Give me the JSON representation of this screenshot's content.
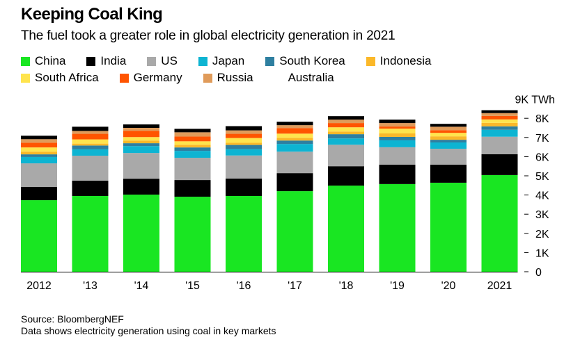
{
  "header": {
    "title": "Keeping Coal King",
    "subtitle": "The fuel took a greater role in global electricity generation in 2021"
  },
  "footer": {
    "source": "Source: BloombergNEF",
    "note": "Data shows electricity generation using coal in key markets"
  },
  "chart_data": {
    "type": "bar",
    "stacked": true,
    "title": "Keeping Coal King",
    "subtitle": "The fuel took a greater role in global electricity generation in 2021",
    "xlabel": "",
    "ylabel": "TWh",
    "unit_label": "9K TWh",
    "ylim": [
      0,
      9000
    ],
    "y_ticks": [
      0,
      1000,
      2000,
      3000,
      4000,
      5000,
      6000,
      7000,
      8000
    ],
    "y_tick_labels": [
      "0",
      "1K",
      "2K",
      "3K",
      "4K",
      "5K",
      "6K",
      "7K",
      "8K"
    ],
    "y_axis_position": "right",
    "grid": false,
    "legend_position": "top-left",
    "categories": [
      "2012",
      "'13",
      "'14",
      "'15",
      "'16",
      "'17",
      "'18",
      "'19",
      "'20",
      "2021"
    ],
    "series": [
      {
        "name": "China",
        "color": "#19e622",
        "values": [
          3730,
          3950,
          4020,
          3910,
          3950,
          4200,
          4490,
          4570,
          4640,
          5040
        ]
      },
      {
        "name": "India",
        "color": "#000000",
        "values": [
          690,
          800,
          830,
          870,
          910,
          940,
          1010,
          1010,
          940,
          1090
        ]
      },
      {
        "name": "US",
        "color": "#a9a9a9",
        "values": [
          1230,
          1300,
          1340,
          1160,
          1200,
          1120,
          1120,
          910,
          830,
          910
        ]
      },
      {
        "name": "Japan",
        "color": "#0db4d2",
        "values": [
          330,
          330,
          360,
          360,
          330,
          400,
          330,
          360,
          330,
          360
        ]
      },
      {
        "name": "South Korea",
        "color": "#2e7fa0",
        "values": [
          140,
          200,
          150,
          180,
          220,
          180,
          220,
          180,
          140,
          180
        ]
      },
      {
        "name": "Indonesia",
        "color": "#fbb829",
        "values": [
          140,
          100,
          140,
          140,
          110,
          140,
          140,
          180,
          180,
          180
        ]
      },
      {
        "name": "South Africa",
        "color": "#ffe44d",
        "values": [
          220,
          220,
          180,
          180,
          250,
          220,
          220,
          250,
          180,
          180
        ]
      },
      {
        "name": "Germany",
        "color": "#ff5400",
        "values": [
          250,
          290,
          330,
          250,
          220,
          290,
          220,
          110,
          140,
          180
        ]
      },
      {
        "name": "Russia",
        "color": "#e09b5a",
        "values": [
          180,
          150,
          150,
          220,
          180,
          150,
          180,
          180,
          180,
          150
        ]
      },
      {
        "name": "Australia",
        "color": "#000000",
        "legend_swatch_color": "#ffffff",
        "values": [
          180,
          220,
          180,
          180,
          220,
          180,
          180,
          180,
          150,
          150
        ]
      }
    ]
  }
}
